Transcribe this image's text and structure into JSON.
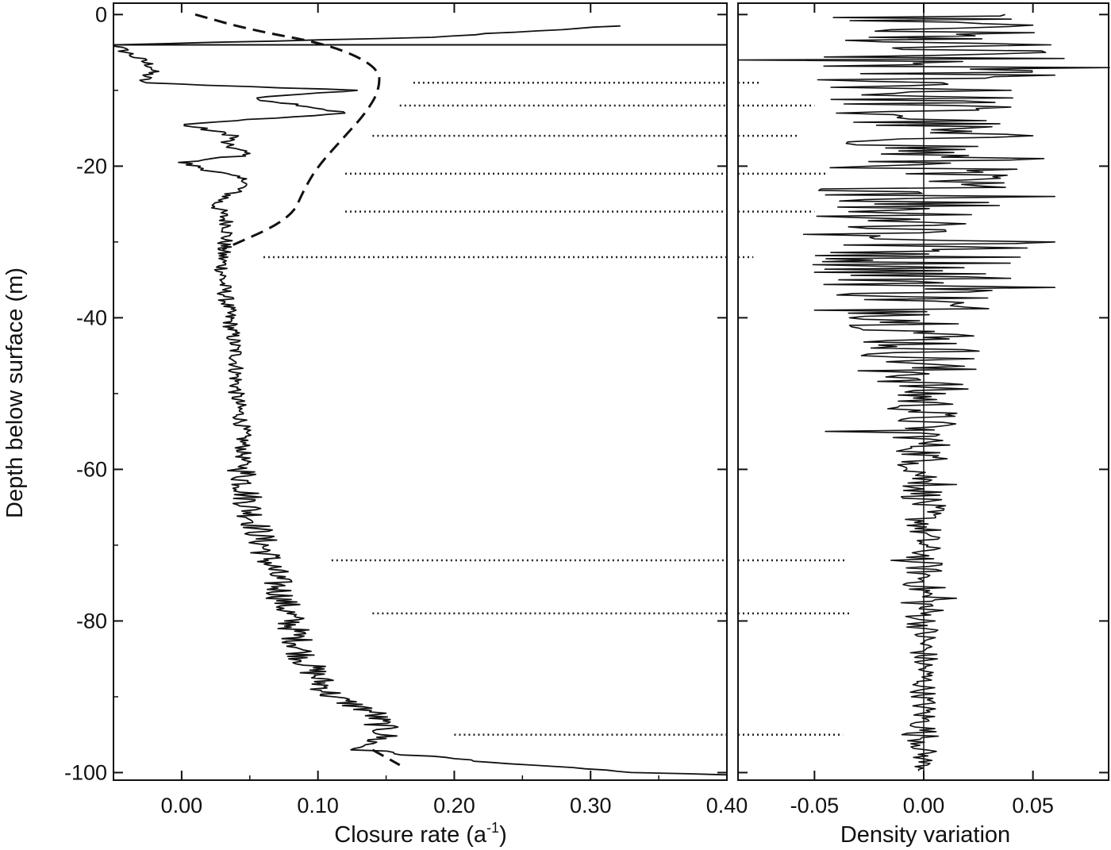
{
  "chart_data": [
    {
      "type": "line",
      "title": "",
      "xlabel_text": "Closure rate (a",
      "xlabel_sup": "-1",
      "xlabel_close": ")",
      "ylabel": "Depth below surface (m)",
      "xlim": [
        -0.05,
        0.4
      ],
      "ylim": [
        -101,
        1.5
      ],
      "xticks": [
        {
          "v": 0.0,
          "label": "0.00"
        },
        {
          "v": 0.1,
          "label": "0.10"
        },
        {
          "v": 0.2,
          "label": "0.20"
        },
        {
          "v": 0.3,
          "label": "0.30"
        },
        {
          "v": 0.4,
          "label": "0.40"
        }
      ],
      "yticks": [
        {
          "v": 0,
          "label": "0"
        },
        {
          "v": -20,
          "label": "-20"
        },
        {
          "v": -40,
          "label": "-40"
        },
        {
          "v": -60,
          "label": "-60"
        },
        {
          "v": -80,
          "label": "-80"
        },
        {
          "v": -100,
          "label": "-100"
        }
      ],
      "series": [
        {
          "style": "solid",
          "description": "measured closure rate profile",
          "points": [
            [
              0.32,
              -1.5
            ],
            [
              0.18,
              -3
            ],
            [
              -0.05,
              -4
            ],
            [
              -0.02,
              -7
            ],
            [
              -0.03,
              -9
            ],
            [
              0.13,
              -10
            ],
            [
              0.05,
              -11
            ],
            [
              0.09,
              -12
            ],
            [
              0.12,
              -13
            ],
            [
              0.0,
              -14.5
            ],
            [
              0.04,
              -16
            ],
            [
              0.03,
              -17
            ],
            [
              0.05,
              -18.5
            ],
            [
              0.0,
              -19.5
            ],
            [
              0.03,
              -21
            ],
            [
              0.05,
              -22
            ],
            [
              0.025,
              -25
            ],
            [
              0.035,
              -28
            ],
            [
              0.03,
              -31
            ],
            [
              0.03,
              -35
            ],
            [
              0.035,
              -40
            ],
            [
              0.04,
              -45
            ],
            [
              0.04,
              -50
            ],
            [
              0.045,
              -55
            ],
            [
              0.045,
              -60
            ],
            [
              0.05,
              -65
            ],
            [
              0.06,
              -70
            ],
            [
              0.07,
              -75
            ],
            [
              0.08,
              -80
            ],
            [
              0.09,
              -85
            ],
            [
              0.11,
              -90
            ],
            [
              0.14,
              -92
            ],
            [
              0.15,
              -95
            ],
            [
              0.13,
              -97
            ],
            [
              0.25,
              -99
            ],
            [
              0.3,
              -99.5
            ],
            [
              0.33,
              -100
            ],
            [
              0.4,
              -100.3
            ]
          ]
        },
        {
          "style": "dashed",
          "description": "modelled closure rate",
          "points": [
            [
              0.01,
              0
            ],
            [
              0.05,
              -2
            ],
            [
              0.11,
              -4
            ],
            [
              0.145,
              -7
            ],
            [
              0.145,
              -10
            ],
            [
              0.135,
              -13
            ],
            [
              0.12,
              -16
            ],
            [
              0.1,
              -20
            ],
            [
              0.09,
              -23
            ],
            [
              0.08,
              -27
            ],
            [
              0.03,
              -31
            ]
          ]
        },
        {
          "style": "dashed",
          "description": "modelled closure rate, bottom segment",
          "points": [
            [
              0.14,
              -97
            ],
            [
              0.16,
              -99
            ]
          ]
        }
      ],
      "dotted_lines": [
        {
          "y": -9,
          "x_start": 0.17
        },
        {
          "y": -12,
          "x_start": 0.16
        },
        {
          "y": -16,
          "x_start": 0.14
        },
        {
          "y": -21,
          "x_start": 0.12
        },
        {
          "y": -26,
          "x_start": 0.12
        },
        {
          "y": -32,
          "x_start": 0.06
        },
        {
          "y": -72,
          "x_start": 0.11
        },
        {
          "y": -79,
          "x_start": 0.14
        },
        {
          "y": -95,
          "x_start": 0.2
        }
      ]
    },
    {
      "type": "line",
      "title": "",
      "xlabel": "Density variation",
      "xlim": [
        -0.085,
        0.085
      ],
      "ylim": [
        -101,
        1.5
      ],
      "zero_line": true,
      "xticks": [
        {
          "v": -0.05,
          "label": "-0.05"
        },
        {
          "v": 0.0,
          "label": "0.00"
        },
        {
          "v": 0.05,
          "label": "0.05"
        }
      ],
      "dotted_lines_end": [
        {
          "y": -9,
          "x_end": -0.075
        },
        {
          "y": -12,
          "x_end": -0.05
        },
        {
          "y": -16,
          "x_end": -0.058
        },
        {
          "y": -21,
          "x_end": -0.045
        },
        {
          "y": -26,
          "x_end": -0.05
        },
        {
          "y": -32,
          "x_end": -0.078
        },
        {
          "y": -72,
          "x_end": -0.035
        },
        {
          "y": -79,
          "x_end": -0.033
        },
        {
          "y": -95,
          "x_end": -0.037
        }
      ],
      "series": [
        {
          "style": "solid",
          "description": "density variation signal",
          "envelope": [
            [
              0,
              0.04
            ],
            [
              -5,
              0.07
            ],
            [
              -10,
              0.05
            ],
            [
              -15,
              0.04
            ],
            [
              -20,
              0.045
            ],
            [
              -25,
              0.05
            ],
            [
              -30,
              0.055
            ],
            [
              -35,
              0.05
            ],
            [
              -40,
              0.035
            ],
            [
              -45,
              0.03
            ],
            [
              -50,
              0.02
            ],
            [
              -55,
              0.015
            ],
            [
              -60,
              0.012
            ],
            [
              -65,
              0.01
            ],
            [
              -70,
              0.008
            ],
            [
              -75,
              0.01
            ],
            [
              -78,
              0.012
            ],
            [
              -80,
              0.008
            ],
            [
              -85,
              0.007
            ],
            [
              -90,
              0.006
            ],
            [
              -95,
              0.008
            ],
            [
              -100,
              0.004
            ]
          ],
          "spikes": [
            [
              -1.5,
              0.05
            ],
            [
              -3,
              -0.025
            ],
            [
              -6,
              -0.085
            ],
            [
              -7,
              0.085
            ],
            [
              -8,
              0.06
            ],
            [
              -10,
              0.04
            ],
            [
              -13,
              -0.04
            ],
            [
              -16,
              0.05
            ],
            [
              -19,
              0.055
            ],
            [
              -24,
              0.06
            ],
            [
              -29,
              -0.055
            ],
            [
              -30,
              0.06
            ],
            [
              -34,
              -0.05
            ],
            [
              -36,
              0.06
            ],
            [
              -39,
              -0.05
            ],
            [
              -47,
              -0.03
            ],
            [
              -55,
              -0.045
            ],
            [
              -59,
              -0.01
            ],
            [
              -62,
              0.015
            ],
            [
              -72,
              -0.015
            ],
            [
              -77,
              0.015
            ],
            [
              -95,
              -0.01
            ]
          ]
        }
      ]
    }
  ]
}
